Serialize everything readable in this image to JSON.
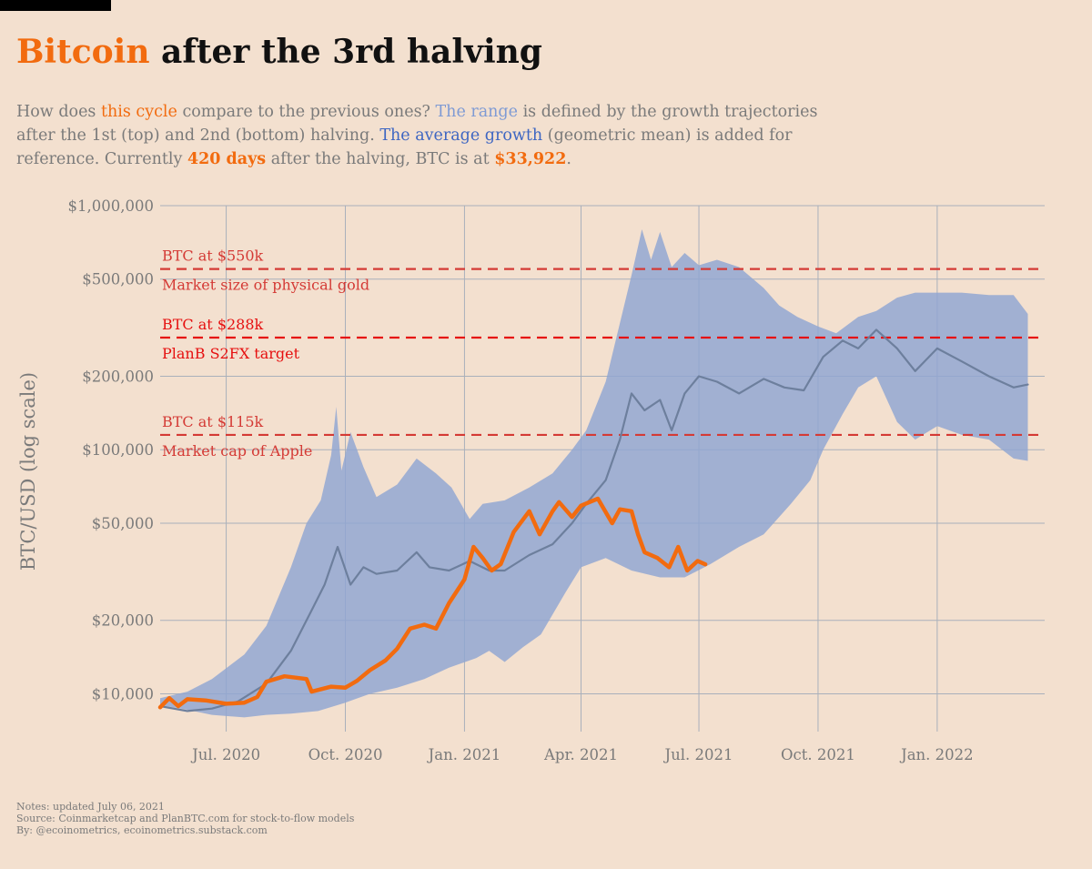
{
  "header": {
    "title_highlight": "Bitcoin",
    "title_rest": " after the 3rd halving",
    "subtitle": [
      {
        "text": "How does ",
        "cls": ""
      },
      {
        "text": "this cycle",
        "cls": "c-cycle"
      },
      {
        "text": " compare to the previous ones? ",
        "cls": ""
      },
      {
        "text": "The range",
        "cls": "c-range"
      },
      {
        "text": " is defined by the growth trajectories after the 1st (top) and 2nd (bottom) halving. ",
        "cls": ""
      },
      {
        "text": "The average growth",
        "cls": "c-avg"
      },
      {
        "text": " (geometric mean) is added for reference. Currently ",
        "cls": ""
      },
      {
        "text": "420 days",
        "cls": "c-strong"
      },
      {
        "text": " after the halving, BTC is at ",
        "cls": ""
      },
      {
        "text": "$33,922",
        "cls": "c-strong"
      },
      {
        "text": ".",
        "cls": ""
      }
    ]
  },
  "colors": {
    "background": "#f3e0cf",
    "range_fill": "#8fa5d2",
    "average_line": "#6d7f9d",
    "current_cycle": "#f26b0f",
    "reference_line": "#d43a35",
    "reference_line_strong": "#e60f0f",
    "grid": "#a9b0bb",
    "axis_text": "#7a7a7a"
  },
  "chart_data": {
    "type": "area",
    "ylabel": "BTC/USD (log scale)",
    "yscale": "log",
    "ylim": [
      7000,
      1000000
    ],
    "xlim": [
      "2020-05-11",
      "2022-03-25"
    ],
    "y_ticks": [
      {
        "value": 10000,
        "label": "$10,000"
      },
      {
        "value": 20000,
        "label": "$20,000"
      },
      {
        "value": 50000,
        "label": "$50,000"
      },
      {
        "value": 100000,
        "label": "$100,000"
      },
      {
        "value": 200000,
        "label": "$200,000"
      },
      {
        "value": 500000,
        "label": "$500,000"
      },
      {
        "value": 1000000,
        "label": "$1,000,000"
      }
    ],
    "x_ticks": [
      {
        "date": "2020-07-01",
        "label": "Jul. 2020"
      },
      {
        "date": "2020-10-01",
        "label": "Oct. 2020"
      },
      {
        "date": "2021-01-01",
        "label": "Jan. 2021"
      },
      {
        "date": "2021-04-01",
        "label": "Apr. 2021"
      },
      {
        "date": "2021-07-01",
        "label": "Jul. 2021"
      },
      {
        "date": "2021-10-01",
        "label": "Oct. 2021"
      },
      {
        "date": "2022-01-01",
        "label": "Jan. 2022"
      }
    ],
    "grid": true,
    "reference_lines": [
      {
        "value": 550000,
        "label_top": "BTC at $550k",
        "label_bottom": "Market size of physical gold",
        "strong": false
      },
      {
        "value": 288000,
        "label_top": "BTC at $288k",
        "label_bottom": "PlanB S2FX target",
        "strong": true
      },
      {
        "value": 115000,
        "label_top": "BTC at $115k",
        "label_bottom": "Market cap of Apple",
        "strong": false
      }
    ],
    "series": [
      {
        "key": "range",
        "kind": "band",
        "upper": [
          [
            "2020-05-11",
            9600
          ],
          [
            "2020-06-01",
            10200
          ],
          [
            "2020-06-20",
            11500
          ],
          [
            "2020-07-15",
            14500
          ],
          [
            "2020-08-01",
            19000
          ],
          [
            "2020-08-20",
            33000
          ],
          [
            "2020-09-01",
            50000
          ],
          [
            "2020-09-12",
            62000
          ],
          [
            "2020-09-20",
            95000
          ],
          [
            "2020-09-24",
            150000
          ],
          [
            "2020-09-28",
            82000
          ],
          [
            "2020-10-05",
            118000
          ],
          [
            "2020-10-15",
            85000
          ],
          [
            "2020-10-25",
            64000
          ],
          [
            "2020-11-10",
            72000
          ],
          [
            "2020-11-25",
            92000
          ],
          [
            "2020-12-10",
            80000
          ],
          [
            "2020-12-22",
            70000
          ],
          [
            "2021-01-05",
            52000
          ],
          [
            "2021-01-15",
            60000
          ],
          [
            "2021-02-01",
            62000
          ],
          [
            "2021-02-20",
            70000
          ],
          [
            "2021-03-10",
            80000
          ],
          [
            "2021-03-25",
            100000
          ],
          [
            "2021-04-05",
            120000
          ],
          [
            "2021-04-20",
            190000
          ],
          [
            "2021-05-01",
            330000
          ],
          [
            "2021-05-10",
            520000
          ],
          [
            "2021-05-18",
            800000
          ],
          [
            "2021-05-25",
            600000
          ],
          [
            "2021-06-01",
            780000
          ],
          [
            "2021-06-10",
            560000
          ],
          [
            "2021-06-20",
            640000
          ],
          [
            "2021-07-01",
            570000
          ],
          [
            "2021-07-15",
            600000
          ],
          [
            "2021-08-01",
            560000
          ],
          [
            "2021-08-20",
            460000
          ],
          [
            "2021-09-01",
            390000
          ],
          [
            "2021-09-15",
            350000
          ],
          [
            "2021-10-01",
            320000
          ],
          [
            "2021-10-15",
            300000
          ],
          [
            "2021-11-01",
            350000
          ],
          [
            "2021-11-15",
            370000
          ],
          [
            "2021-12-01",
            420000
          ],
          [
            "2021-12-15",
            440000
          ],
          [
            "2022-01-01",
            440000
          ],
          [
            "2022-01-20",
            440000
          ],
          [
            "2022-02-10",
            430000
          ],
          [
            "2022-03-01",
            430000
          ],
          [
            "2022-03-12",
            360000
          ]
        ],
        "lower": [
          [
            "2020-05-11",
            9000
          ],
          [
            "2020-06-01",
            8600
          ],
          [
            "2020-06-20",
            8200
          ],
          [
            "2020-07-15",
            8000
          ],
          [
            "2020-08-01",
            8200
          ],
          [
            "2020-08-20",
            8300
          ],
          [
            "2020-09-10",
            8500
          ],
          [
            "2020-10-01",
            9200
          ],
          [
            "2020-10-20",
            10000
          ],
          [
            "2020-11-10",
            10600
          ],
          [
            "2020-12-01",
            11500
          ],
          [
            "2020-12-20",
            12800
          ],
          [
            "2021-01-10",
            14000
          ],
          [
            "2021-01-20",
            15000
          ],
          [
            "2021-02-01",
            13500
          ],
          [
            "2021-02-15",
            15500
          ],
          [
            "2021-03-01",
            17500
          ],
          [
            "2021-03-20",
            26000
          ],
          [
            "2021-04-01",
            33000
          ],
          [
            "2021-04-20",
            36000
          ],
          [
            "2021-05-10",
            32000
          ],
          [
            "2021-06-01",
            30000
          ],
          [
            "2021-06-20",
            30000
          ],
          [
            "2021-07-10",
            34000
          ],
          [
            "2021-08-01",
            40000
          ],
          [
            "2021-08-20",
            45000
          ],
          [
            "2021-09-10",
            60000
          ],
          [
            "2021-09-25",
            75000
          ],
          [
            "2021-10-05",
            100000
          ],
          [
            "2021-10-20",
            140000
          ],
          [
            "2021-11-01",
            180000
          ],
          [
            "2021-11-15",
            200000
          ],
          [
            "2021-12-01",
            130000
          ],
          [
            "2021-12-15",
            110000
          ],
          [
            "2022-01-01",
            125000
          ],
          [
            "2022-01-20",
            115000
          ],
          [
            "2022-02-10",
            110000
          ],
          [
            "2022-03-01",
            92000
          ],
          [
            "2022-03-12",
            90000
          ]
        ]
      },
      {
        "key": "average",
        "kind": "line",
        "points": [
          [
            "2020-05-11",
            8900
          ],
          [
            "2020-06-01",
            8500
          ],
          [
            "2020-06-20",
            8700
          ],
          [
            "2020-07-10",
            9300
          ],
          [
            "2020-08-01",
            11000
          ],
          [
            "2020-08-20",
            15000
          ],
          [
            "2020-09-05",
            22000
          ],
          [
            "2020-09-15",
            28000
          ],
          [
            "2020-09-25",
            40000
          ],
          [
            "2020-10-05",
            28000
          ],
          [
            "2020-10-15",
            33000
          ],
          [
            "2020-10-25",
            31000
          ],
          [
            "2020-11-10",
            32000
          ],
          [
            "2020-11-25",
            38000
          ],
          [
            "2020-12-05",
            33000
          ],
          [
            "2020-12-20",
            32000
          ],
          [
            "2021-01-05",
            35000
          ],
          [
            "2021-01-20",
            32000
          ],
          [
            "2021-02-01",
            32000
          ],
          [
            "2021-02-20",
            37000
          ],
          [
            "2021-03-10",
            41000
          ],
          [
            "2021-03-25",
            50000
          ],
          [
            "2021-04-05",
            60000
          ],
          [
            "2021-04-20",
            75000
          ],
          [
            "2021-05-01",
            110000
          ],
          [
            "2021-05-10",
            170000
          ],
          [
            "2021-05-20",
            145000
          ],
          [
            "2021-06-01",
            160000
          ],
          [
            "2021-06-10",
            120000
          ],
          [
            "2021-06-20",
            170000
          ],
          [
            "2021-07-01",
            200000
          ],
          [
            "2021-07-15",
            190000
          ],
          [
            "2021-08-01",
            170000
          ],
          [
            "2021-08-20",
            195000
          ],
          [
            "2021-09-05",
            180000
          ],
          [
            "2021-09-20",
            175000
          ],
          [
            "2021-10-05",
            240000
          ],
          [
            "2021-10-20",
            280000
          ],
          [
            "2021-11-01",
            260000
          ],
          [
            "2021-11-15",
            310000
          ],
          [
            "2021-12-01",
            260000
          ],
          [
            "2021-12-15",
            210000
          ],
          [
            "2022-01-01",
            260000
          ],
          [
            "2022-01-20",
            230000
          ],
          [
            "2022-02-10",
            200000
          ],
          [
            "2022-03-01",
            180000
          ],
          [
            "2022-03-12",
            185000
          ]
        ]
      },
      {
        "key": "current",
        "kind": "line",
        "points": [
          [
            "2020-05-11",
            8800
          ],
          [
            "2020-05-18",
            9600
          ],
          [
            "2020-05-25",
            8900
          ],
          [
            "2020-06-01",
            9500
          ],
          [
            "2020-06-15",
            9400
          ],
          [
            "2020-07-01",
            9100
          ],
          [
            "2020-07-15",
            9200
          ],
          [
            "2020-07-25",
            9700
          ],
          [
            "2020-08-01",
            11200
          ],
          [
            "2020-08-15",
            11800
          ],
          [
            "2020-09-01",
            11500
          ],
          [
            "2020-09-05",
            10200
          ],
          [
            "2020-09-20",
            10700
          ],
          [
            "2020-10-01",
            10600
          ],
          [
            "2020-10-10",
            11300
          ],
          [
            "2020-10-20",
            12500
          ],
          [
            "2020-11-01",
            13700
          ],
          [
            "2020-11-10",
            15300
          ],
          [
            "2020-11-20",
            18500
          ],
          [
            "2020-12-01",
            19200
          ],
          [
            "2020-12-10",
            18500
          ],
          [
            "2020-12-20",
            23500
          ],
          [
            "2021-01-01",
            29400
          ],
          [
            "2021-01-08",
            40000
          ],
          [
            "2021-01-15",
            36000
          ],
          [
            "2021-01-22",
            32000
          ],
          [
            "2021-01-29",
            34000
          ],
          [
            "2021-02-08",
            46000
          ],
          [
            "2021-02-20",
            56000
          ],
          [
            "2021-02-28",
            45000
          ],
          [
            "2021-03-10",
            56000
          ],
          [
            "2021-03-15",
            61000
          ],
          [
            "2021-03-25",
            53000
          ],
          [
            "2021-04-01",
            59000
          ],
          [
            "2021-04-14",
            63000
          ],
          [
            "2021-04-25",
            50000
          ],
          [
            "2021-05-01",
            57000
          ],
          [
            "2021-05-10",
            56000
          ],
          [
            "2021-05-15",
            45000
          ],
          [
            "2021-05-20",
            38000
          ],
          [
            "2021-05-30",
            36000
          ],
          [
            "2021-06-08",
            33000
          ],
          [
            "2021-06-15",
            40000
          ],
          [
            "2021-06-22",
            32000
          ],
          [
            "2021-06-30",
            35000
          ],
          [
            "2021-07-06",
            33922
          ]
        ]
      }
    ]
  },
  "notes": [
    "Notes: updated July 06, 2021",
    "Source: Coinmarketcap and PlanBTC.com for stock-to-flow models",
    "By: @ecoinometrics, ecoinometrics.substack.com"
  ]
}
